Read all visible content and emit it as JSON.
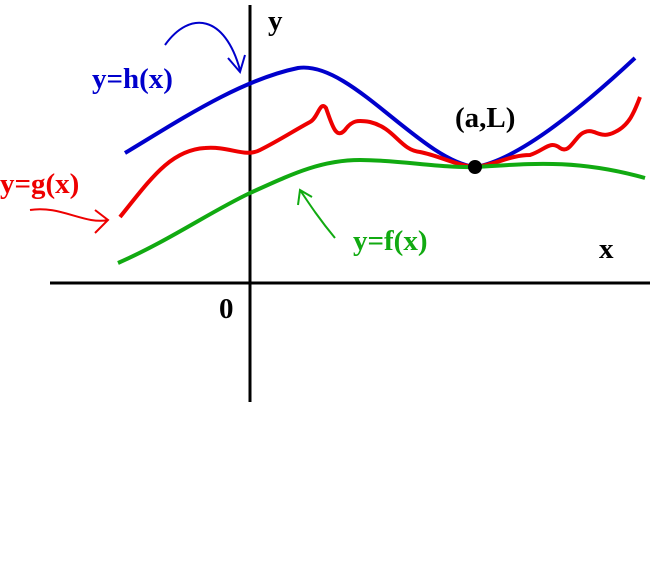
{
  "axes": {
    "y_label": "y",
    "x_label": "x",
    "origin_label": "0"
  },
  "curves": {
    "upper": "y=h(x)",
    "middle": "y=g(x)",
    "lower": "y=f(x)"
  },
  "point": {
    "label": "(a,L)"
  }
}
